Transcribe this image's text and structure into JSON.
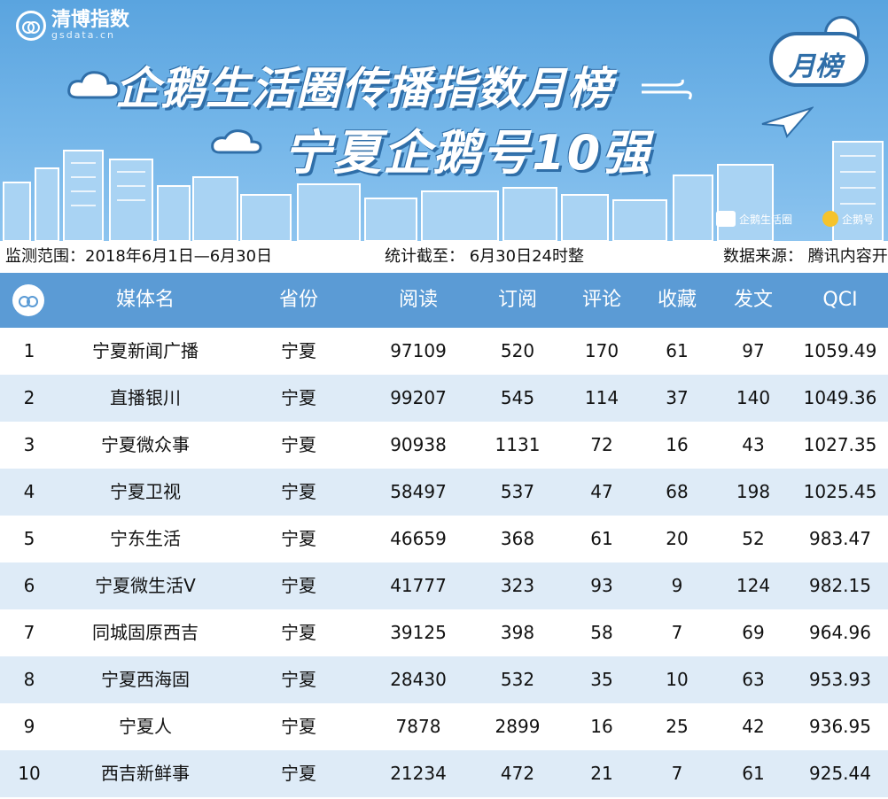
{
  "banner": {
    "logo_text": "清博指数",
    "logo_sub": "gsdata.cn",
    "title_line1": "企鹅生活圈传播指数月榜",
    "title_line2": "宁夏企鹅号10强",
    "badge_text": "月榜",
    "brand1": "企鹅生活圈",
    "brand2": "企鹅号",
    "colors": {
      "sky": "#74b6e9",
      "outline": "#2f6ea8",
      "header": "#5b9bd5",
      "stripe": "#deebf7"
    }
  },
  "info": {
    "range": "监测范围：2018年6月1日—6月30日",
    "cutoff": "统计截至： 6月30日24时整",
    "source": "数据来源： 腾讯内容开"
  },
  "table": {
    "headers": [
      "媒体名",
      "省份",
      "阅读",
      "订阅",
      "评论",
      "收藏",
      "发文",
      "QCI"
    ],
    "rows": [
      [
        "1",
        "宁夏新闻广播",
        "宁夏",
        "97109",
        "520",
        "170",
        "61",
        "97",
        "1059.49"
      ],
      [
        "2",
        "直播银川",
        "宁夏",
        "99207",
        "545",
        "114",
        "37",
        "140",
        "1049.36"
      ],
      [
        "3",
        "宁夏微众事",
        "宁夏",
        "90938",
        "1131",
        "72",
        "16",
        "43",
        "1027.35"
      ],
      [
        "4",
        "宁夏卫视",
        "宁夏",
        "58497",
        "537",
        "47",
        "68",
        "198",
        "1025.45"
      ],
      [
        "5",
        "宁东生活",
        "宁夏",
        "46659",
        "368",
        "61",
        "20",
        "52",
        "983.47"
      ],
      [
        "6",
        "宁夏微生活V",
        "宁夏",
        "41777",
        "323",
        "93",
        "9",
        "124",
        "982.15"
      ],
      [
        "7",
        "同城固原西吉",
        "宁夏",
        "39125",
        "398",
        "58",
        "7",
        "69",
        "964.96"
      ],
      [
        "8",
        "宁夏西海固",
        "宁夏",
        "28430",
        "532",
        "35",
        "10",
        "63",
        "953.93"
      ],
      [
        "9",
        "宁夏人",
        "宁夏",
        "7878",
        "2899",
        "16",
        "25",
        "42",
        "936.95"
      ],
      [
        "10",
        "西吉新鲜事",
        "宁夏",
        "21234",
        "472",
        "21",
        "7",
        "61",
        "925.44"
      ]
    ]
  }
}
